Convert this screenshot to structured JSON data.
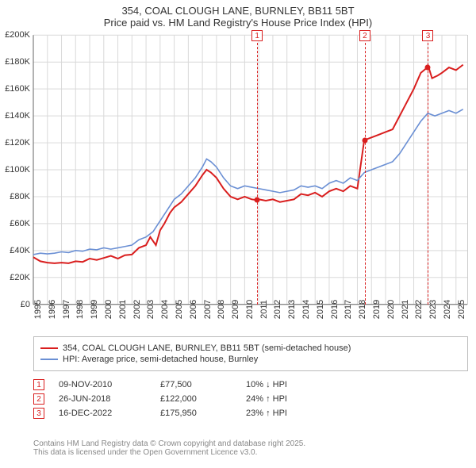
{
  "title_line1": "354, COAL CLOUGH LANE, BURNLEY, BB11 5BT",
  "title_line2": "Price paid vs. HM Land Registry's House Price Index (HPI)",
  "chart": {
    "type": "line",
    "background_color": "#ffffff",
    "grid_color": "#d9d9d9",
    "axis_color": "#666666",
    "x_years": [
      1995,
      1996,
      1997,
      1998,
      1999,
      2000,
      2001,
      2002,
      2003,
      2004,
      2005,
      2006,
      2007,
      2008,
      2009,
      2010,
      2011,
      2012,
      2013,
      2014,
      2015,
      2016,
      2017,
      2018,
      2019,
      2020,
      2021,
      2022,
      2023,
      2024,
      2025
    ],
    "x_min": 1995,
    "x_max": 2025.8,
    "y_min": 0,
    "y_max": 200000,
    "y_ticks": [
      0,
      20000,
      40000,
      60000,
      80000,
      100000,
      120000,
      140000,
      160000,
      180000,
      200000
    ],
    "y_tick_labels": [
      "£0",
      "£20K",
      "£40K",
      "£60K",
      "£80K",
      "£100K",
      "£120K",
      "£140K",
      "£160K",
      "£180K",
      "£200K"
    ],
    "axis_fontsize": 11,
    "series": [
      {
        "name": "price_paid",
        "label": "354, COAL CLOUGH LANE, BURNLEY, BB11 5BT (semi-detached house)",
        "color": "#d91e1e",
        "line_width": 2,
        "points": [
          [
            1995.0,
            35000
          ],
          [
            1995.5,
            32000
          ],
          [
            1996.0,
            31000
          ],
          [
            1996.5,
            30500
          ],
          [
            1997.0,
            31000
          ],
          [
            1997.5,
            30500
          ],
          [
            1998.0,
            32000
          ],
          [
            1998.5,
            31500
          ],
          [
            1999.0,
            34000
          ],
          [
            1999.5,
            33000
          ],
          [
            2000.0,
            34500
          ],
          [
            2000.5,
            36000
          ],
          [
            2001.0,
            34000
          ],
          [
            2001.5,
            36500
          ],
          [
            2002.0,
            37000
          ],
          [
            2002.5,
            42000
          ],
          [
            2003.0,
            44000
          ],
          [
            2003.3,
            50000
          ],
          [
            2003.7,
            44000
          ],
          [
            2004.0,
            55000
          ],
          [
            2004.3,
            60000
          ],
          [
            2004.7,
            68000
          ],
          [
            2005.0,
            72000
          ],
          [
            2005.5,
            76000
          ],
          [
            2006.0,
            82000
          ],
          [
            2006.5,
            88000
          ],
          [
            2007.0,
            96000
          ],
          [
            2007.3,
            100000
          ],
          [
            2007.6,
            98000
          ],
          [
            2008.0,
            94000
          ],
          [
            2008.5,
            86000
          ],
          [
            2009.0,
            80000
          ],
          [
            2009.5,
            78000
          ],
          [
            2010.0,
            80000
          ],
          [
            2010.5,
            78000
          ],
          [
            2010.86,
            77500
          ],
          [
            2011.0,
            78000
          ],
          [
            2011.5,
            77000
          ],
          [
            2012.0,
            78000
          ],
          [
            2012.5,
            76000
          ],
          [
            2013.0,
            77000
          ],
          [
            2013.5,
            78000
          ],
          [
            2014.0,
            82000
          ],
          [
            2014.5,
            81000
          ],
          [
            2015.0,
            83000
          ],
          [
            2015.5,
            80000
          ],
          [
            2016.0,
            84000
          ],
          [
            2016.5,
            86000
          ],
          [
            2017.0,
            84000
          ],
          [
            2017.5,
            88000
          ],
          [
            2018.0,
            86000
          ],
          [
            2018.49,
            122000
          ],
          [
            2018.5,
            122000
          ],
          [
            2019.0,
            124000
          ],
          [
            2019.5,
            126000
          ],
          [
            2020.0,
            128000
          ],
          [
            2020.5,
            130000
          ],
          [
            2021.0,
            140000
          ],
          [
            2021.5,
            150000
          ],
          [
            2022.0,
            160000
          ],
          [
            2022.5,
            172000
          ],
          [
            2022.96,
            175950
          ],
          [
            2023.0,
            178000
          ],
          [
            2023.3,
            168000
          ],
          [
            2023.7,
            170000
          ],
          [
            2024.0,
            172000
          ],
          [
            2024.5,
            176000
          ],
          [
            2025.0,
            174000
          ],
          [
            2025.5,
            178000
          ]
        ]
      },
      {
        "name": "hpi",
        "label": "HPI: Average price, semi-detached house, Burnley",
        "color": "#6a8fd4",
        "line_width": 1.6,
        "points": [
          [
            1995.0,
            37000
          ],
          [
            1995.5,
            38000
          ],
          [
            1996.0,
            37500
          ],
          [
            1996.5,
            38000
          ],
          [
            1997.0,
            39000
          ],
          [
            1997.5,
            38500
          ],
          [
            1998.0,
            40000
          ],
          [
            1998.5,
            39500
          ],
          [
            1999.0,
            41000
          ],
          [
            1999.5,
            40500
          ],
          [
            2000.0,
            42000
          ],
          [
            2000.5,
            41000
          ],
          [
            2001.0,
            42000
          ],
          [
            2001.5,
            43000
          ],
          [
            2002.0,
            44000
          ],
          [
            2002.5,
            48000
          ],
          [
            2003.0,
            50000
          ],
          [
            2003.5,
            54000
          ],
          [
            2004.0,
            62000
          ],
          [
            2004.5,
            70000
          ],
          [
            2005.0,
            78000
          ],
          [
            2005.5,
            82000
          ],
          [
            2006.0,
            88000
          ],
          [
            2006.5,
            94000
          ],
          [
            2007.0,
            102000
          ],
          [
            2007.3,
            108000
          ],
          [
            2007.6,
            106000
          ],
          [
            2008.0,
            102000
          ],
          [
            2008.5,
            94000
          ],
          [
            2009.0,
            88000
          ],
          [
            2009.5,
            86000
          ],
          [
            2010.0,
            88000
          ],
          [
            2010.5,
            87000
          ],
          [
            2011.0,
            86000
          ],
          [
            2011.5,
            85000
          ],
          [
            2012.0,
            84000
          ],
          [
            2012.5,
            83000
          ],
          [
            2013.0,
            84000
          ],
          [
            2013.5,
            85000
          ],
          [
            2014.0,
            88000
          ],
          [
            2014.5,
            87000
          ],
          [
            2015.0,
            88000
          ],
          [
            2015.5,
            86000
          ],
          [
            2016.0,
            90000
          ],
          [
            2016.5,
            92000
          ],
          [
            2017.0,
            90000
          ],
          [
            2017.5,
            94000
          ],
          [
            2018.0,
            92000
          ],
          [
            2018.5,
            98000
          ],
          [
            2019.0,
            100000
          ],
          [
            2019.5,
            102000
          ],
          [
            2020.0,
            104000
          ],
          [
            2020.5,
            106000
          ],
          [
            2021.0,
            112000
          ],
          [
            2021.5,
            120000
          ],
          [
            2022.0,
            128000
          ],
          [
            2022.5,
            136000
          ],
          [
            2023.0,
            142000
          ],
          [
            2023.5,
            140000
          ],
          [
            2024.0,
            142000
          ],
          [
            2024.5,
            144000
          ],
          [
            2025.0,
            142000
          ],
          [
            2025.5,
            145000
          ]
        ]
      }
    ],
    "sale_markers": [
      {
        "n": 1,
        "x": 2010.86,
        "y": 77500,
        "color": "#d91e1e"
      },
      {
        "n": 2,
        "x": 2018.49,
        "y": 122000,
        "color": "#d91e1e"
      },
      {
        "n": 3,
        "x": 2022.96,
        "y": 175950,
        "color": "#d91e1e"
      }
    ]
  },
  "legend": {
    "border_color": "#bbbbbb",
    "items": [
      {
        "color": "#d91e1e",
        "label": "354, COAL CLOUGH LANE, BURNLEY, BB11 5BT (semi-detached house)"
      },
      {
        "color": "#6a8fd4",
        "label": "HPI: Average price, semi-detached house, Burnley"
      }
    ]
  },
  "sales_table": {
    "rows": [
      {
        "n": "1",
        "date": "09-NOV-2010",
        "price": "£77,500",
        "delta": "10% ↓ HPI",
        "border": "#d91e1e"
      },
      {
        "n": "2",
        "date": "26-JUN-2018",
        "price": "£122,000",
        "delta": "24% ↑ HPI",
        "border": "#d91e1e"
      },
      {
        "n": "3",
        "date": "16-DEC-2022",
        "price": "£175,950",
        "delta": "23% ↑ HPI",
        "border": "#d91e1e"
      }
    ]
  },
  "attribution": {
    "line1": "Contains HM Land Registry data © Crown copyright and database right 2025.",
    "line2": "This data is licensed under the Open Government Licence v3.0.",
    "color": "#888888"
  }
}
